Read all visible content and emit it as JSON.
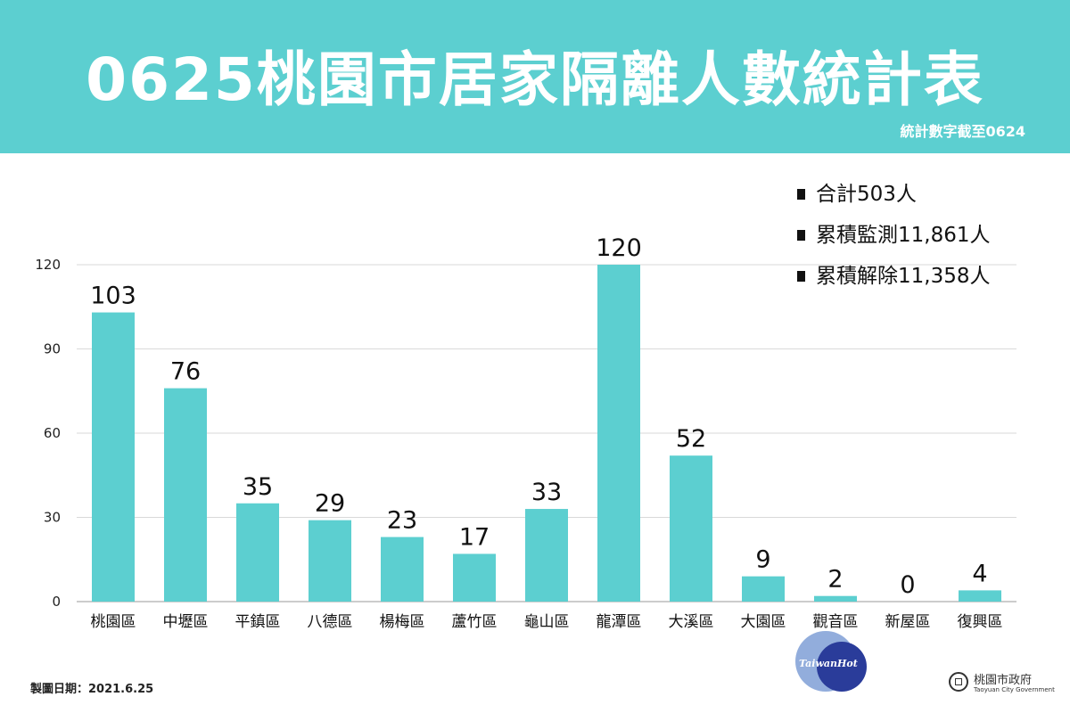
{
  "header": {
    "title": "0625桃園市居家隔離人數統計表",
    "subtitle": "統計數字截至0624"
  },
  "summary": [
    "合計503人",
    "累積監測11,861人",
    "累積解除11,358人"
  ],
  "chart_data": {
    "type": "bar",
    "categories": [
      "桃園區",
      "中壢區",
      "平鎮區",
      "八德區",
      "楊梅區",
      "蘆竹區",
      "龜山區",
      "龍潭區",
      "大溪區",
      "大園區",
      "觀音區",
      "新屋區",
      "復興區"
    ],
    "values": [
      103,
      76,
      35,
      29,
      23,
      17,
      33,
      120,
      52,
      9,
      2,
      0,
      4
    ],
    "data_labels": [
      "103",
      "76",
      "35",
      "29",
      "23",
      "17",
      "33",
      "120",
      "52",
      "9",
      "2",
      "0",
      "4"
    ],
    "yticks": [
      0,
      30,
      60,
      90,
      120
    ],
    "ytick_labels": [
      "0",
      "30",
      "60",
      "90",
      "120"
    ],
    "ylim": [
      0,
      120
    ],
    "grid": true,
    "bar_color": "#5ccfd0"
  },
  "footer": {
    "date": "製圖日期：2021.6.25",
    "watermark_text": "TaiwanHot",
    "gov_name": "桃園市政府",
    "gov_name_en": "Taoyuan City Government"
  },
  "colors": {
    "header_bg": "#5ccfd0",
    "bar": "#5ccfd0",
    "grid": "#d9d9d9",
    "text": "#111111"
  }
}
